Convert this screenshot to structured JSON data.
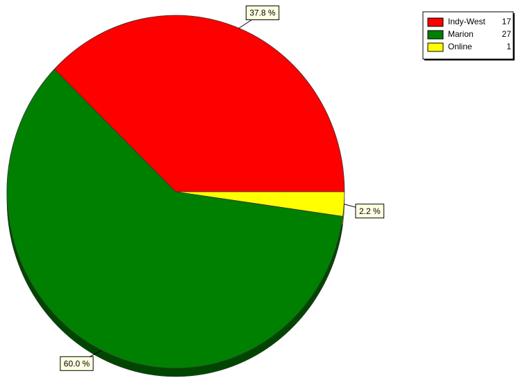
{
  "chart_data": {
    "type": "pie",
    "categories": [
      "Indy-West",
      "Marion",
      "Online"
    ],
    "values": [
      17,
      27,
      1
    ],
    "value_labels": [
      "37.8 %",
      "60.0 %",
      "2.2 %"
    ],
    "colors": [
      "#ff0000",
      "#008000",
      "#ffff00"
    ],
    "legend": "top-right"
  }
}
